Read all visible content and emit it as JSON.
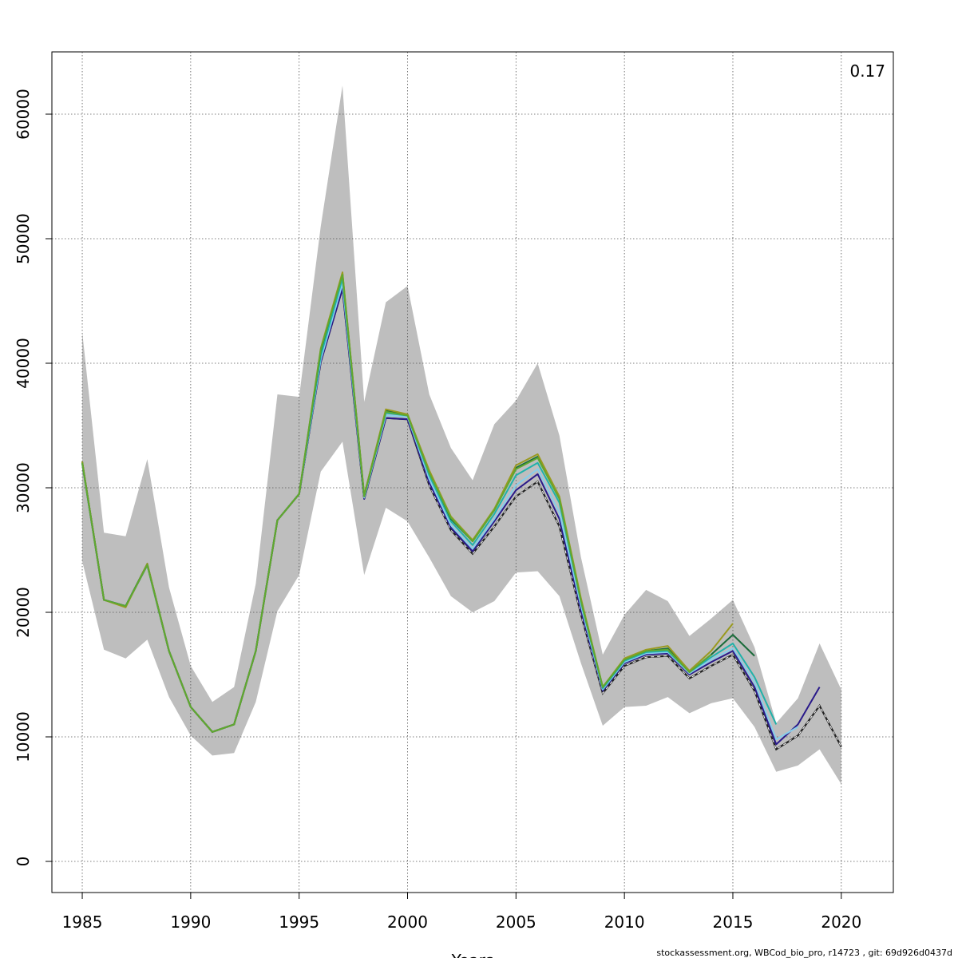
{
  "chart_data": {
    "type": "line",
    "title": "",
    "xlabel": "Years",
    "ylabel": "",
    "xlim": [
      1983.6,
      2022.4
    ],
    "ylim": [
      -2500,
      65000
    ],
    "grid": true,
    "x_ticks": [
      1985,
      1990,
      1995,
      2000,
      2005,
      2010,
      2015,
      2020
    ],
    "y_ticks": [
      0,
      10000,
      20000,
      30000,
      40000,
      50000,
      60000
    ],
    "annotation": "0.17",
    "band": {
      "color": "#bebebe",
      "x": [
        1985,
        1986,
        1987,
        1988,
        1989,
        1990,
        1991,
        1992,
        1993,
        1994,
        1995,
        1996,
        1997,
        1998,
        1999,
        2000,
        2001,
        2002,
        2003,
        2004,
        2005,
        2006,
        2007,
        2008,
        2009,
        2010,
        2011,
        2012,
        2013,
        2014,
        2015,
        2016,
        2017,
        2018,
        2019,
        2020
      ],
      "upper": [
        42500,
        26400,
        26100,
        32300,
        22000,
        15700,
        12800,
        14000,
        22300,
        37500,
        37300,
        51000,
        62300,
        36900,
        44900,
        46200,
        37500,
        33200,
        30600,
        35100,
        37000,
        40000,
        34200,
        24400,
        16600,
        19800,
        21800,
        20900,
        18100,
        19500,
        21000,
        17200,
        11100,
        13100,
        17500,
        13800
      ],
      "lower": [
        24100,
        17000,
        16300,
        17800,
        13200,
        10100,
        8500,
        8700,
        12800,
        20100,
        23000,
        31300,
        33700,
        23000,
        28400,
        27300,
        24400,
        21300,
        20000,
        20900,
        23200,
        23300,
        21300,
        15900,
        10900,
        12400,
        12500,
        13200,
        11900,
        12700,
        13100,
        10800,
        7200,
        7700,
        9000,
        6200
      ]
    },
    "series": [
      {
        "color": "#000000",
        "dashed": true,
        "x": [
          1985,
          1986,
          1987,
          1988,
          1989,
          1990,
          1991,
          1992,
          1993,
          1994,
          1995,
          1996,
          1997,
          1998,
          1999,
          2000,
          2001,
          2002,
          2003,
          2004,
          2005,
          2006,
          2007,
          2008,
          2009,
          2010,
          2011,
          2012,
          2013,
          2014,
          2015,
          2016,
          2017,
          2018,
          2019,
          2020
        ],
        "values": [
          32000,
          21000,
          20500,
          23800,
          16900,
          12400,
          10400,
          11000,
          16900,
          27400,
          29500,
          40100,
          46000,
          29100,
          35600,
          35500,
          30200,
          26600,
          24700,
          26900,
          29300,
          30500,
          26900,
          19800,
          13500,
          15700,
          16400,
          16500,
          14700,
          15700,
          16600,
          13700,
          9000,
          10100,
          12500,
          9200
        ]
      },
      {
        "color": "#2a1a8a",
        "dashed": false,
        "x": [
          1985,
          1986,
          1987,
          1988,
          1989,
          1990,
          1991,
          1992,
          1993,
          1994,
          1995,
          1996,
          1997,
          1998,
          1999,
          2000,
          2001,
          2002,
          2003,
          2004,
          2005,
          2006,
          2007,
          2008,
          2009,
          2010,
          2011,
          2012,
          2013,
          2014,
          2015,
          2016,
          2017,
          2018,
          2019
        ],
        "values": [
          32000,
          21000,
          20500,
          23800,
          16900,
          12400,
          10400,
          11000,
          16900,
          27400,
          29500,
          40100,
          46000,
          29100,
          35600,
          35500,
          30400,
          26800,
          24900,
          27300,
          29800,
          31100,
          27500,
          20100,
          13700,
          15900,
          16600,
          16700,
          15000,
          16000,
          16900,
          14000,
          9400,
          11000,
          14000
        ]
      },
      {
        "color": "#87ceeb",
        "dashed": false,
        "x": [
          1985,
          1986,
          1987,
          1988,
          1989,
          1990,
          1991,
          1992,
          1993,
          1994,
          1995,
          1996,
          1997,
          1998,
          1999,
          2000,
          2001,
          2002,
          2003,
          2004,
          2005,
          2006,
          2007,
          2008,
          2009,
          2010,
          2011,
          2012,
          2013,
          2014,
          2015,
          2016,
          2017,
          2018
        ],
        "values": [
          32000,
          21000,
          20500,
          23800,
          16900,
          12400,
          10400,
          11000,
          16900,
          27400,
          29500,
          40300,
          46400,
          29200,
          35800,
          35700,
          30700,
          27000,
          25100,
          27500,
          30200,
          31500,
          28000,
          20500,
          13800,
          16000,
          16700,
          16800,
          15100,
          16200,
          17100,
          14400,
          9800,
          10800
        ]
      },
      {
        "color": "#20b2aa",
        "dashed": false,
        "x": [
          1985,
          1986,
          1987,
          1988,
          1989,
          1990,
          1991,
          1992,
          1993,
          1994,
          1995,
          1996,
          1997,
          1998,
          1999,
          2000,
          2001,
          2002,
          2003,
          2004,
          2005,
          2006,
          2007,
          2008,
          2009,
          2010,
          2011,
          2012,
          2013,
          2014,
          2015,
          2016,
          2017
        ],
        "values": [
          32000,
          21000,
          20500,
          23800,
          16900,
          12400,
          10400,
          11000,
          16900,
          27400,
          29500,
          40600,
          46800,
          29300,
          36000,
          35800,
          31000,
          27300,
          25400,
          27900,
          31000,
          32000,
          28800,
          20800,
          13900,
          16100,
          16800,
          16900,
          15200,
          16400,
          17500,
          14800,
          11000
        ]
      },
      {
        "color": "#1a6b3a",
        "dashed": false,
        "x": [
          1985,
          1986,
          1987,
          1988,
          1989,
          1990,
          1991,
          1992,
          1993,
          1994,
          1995,
          1996,
          1997,
          1998,
          1999,
          2000,
          2001,
          2002,
          2003,
          2004,
          2005,
          2006,
          2007,
          2008,
          2009,
          2010,
          2011,
          2012,
          2013,
          2014,
          2015,
          2016
        ],
        "values": [
          32100,
          21000,
          20500,
          23900,
          16900,
          12400,
          10400,
          11000,
          16900,
          27400,
          29500,
          41000,
          47200,
          29400,
          36200,
          35900,
          31300,
          27500,
          25700,
          28200,
          31600,
          32500,
          29200,
          21000,
          14000,
          16200,
          16900,
          17100,
          15200,
          16600,
          18200,
          16500
        ]
      },
      {
        "color": "#9a9a20",
        "dashed": false,
        "x": [
          1985,
          1986,
          1987,
          1988,
          1989,
          1990,
          1991,
          1992,
          1993,
          1994,
          1995,
          1996,
          1997,
          1998,
          1999,
          2000,
          2001,
          2002,
          2003,
          2004,
          2005,
          2006,
          2007,
          2008,
          2009,
          2010,
          2011,
          2012,
          2013,
          2014,
          2015
        ],
        "values": [
          32100,
          21000,
          20400,
          23900,
          16900,
          12400,
          10400,
          11000,
          16900,
          27400,
          29500,
          41200,
          47300,
          29400,
          36300,
          35900,
          31400,
          27700,
          25800,
          28300,
          31800,
          32700,
          29300,
          21100,
          14000,
          16300,
          17000,
          17300,
          15300,
          16900,
          19100
        ]
      },
      {
        "color": "#5fa830",
        "dashed": false,
        "x": [
          1985,
          1986,
          1987,
          1988,
          1989,
          1990,
          1991,
          1992,
          1993,
          1994,
          1995,
          1996,
          1997,
          1998,
          1999,
          2000,
          2001,
          2002,
          2003,
          2004,
          2005,
          2006,
          2007,
          2008,
          2009,
          2010,
          2011,
          2012,
          2013,
          2014
        ],
        "values": [
          32000,
          21000,
          20500,
          23800,
          16900,
          12400,
          10400,
          11000,
          16900,
          27400,
          29500,
          41100,
          47100,
          29300,
          36100,
          35800,
          31200,
          27600,
          25700,
          28200,
          31500,
          32400,
          29100,
          20900,
          14000,
          16200,
          16900,
          17000,
          15200,
          16600
        ]
      }
    ]
  },
  "footer": "stockassessment.org, WBCod_bio_pro, r14723 , git: 69d926d0437d"
}
